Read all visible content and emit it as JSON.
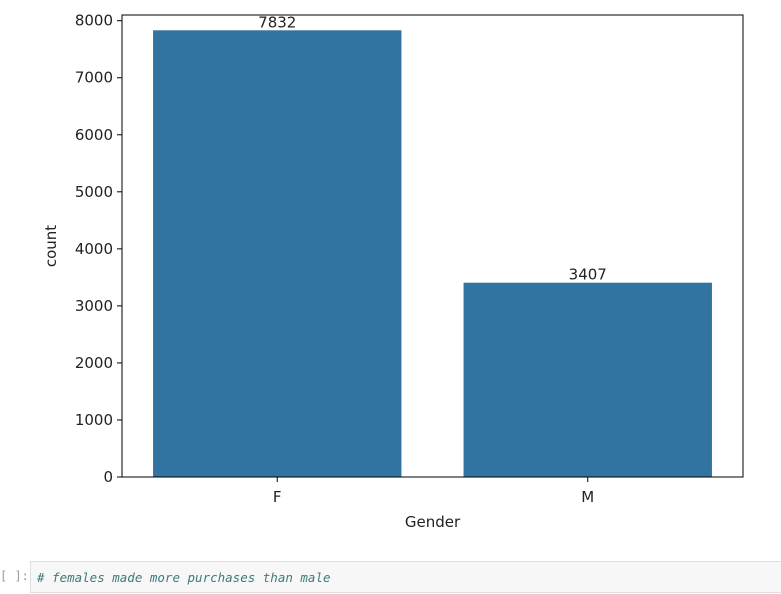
{
  "chart_data": {
    "type": "bar",
    "categories": [
      "F",
      "M"
    ],
    "values": [
      7832,
      3407
    ],
    "data_labels": [
      "7832",
      "3407"
    ],
    "xlabel": "Gender",
    "ylabel": "count",
    "ylim": [
      0,
      8100
    ],
    "yticks": [
      0,
      1000,
      2000,
      3000,
      4000,
      5000,
      6000,
      7000,
      8000
    ],
    "grid": false,
    "bar_color": "#3274a1"
  },
  "cell": {
    "prompt": "[ ]:",
    "code": "# females made more purchases than male"
  }
}
